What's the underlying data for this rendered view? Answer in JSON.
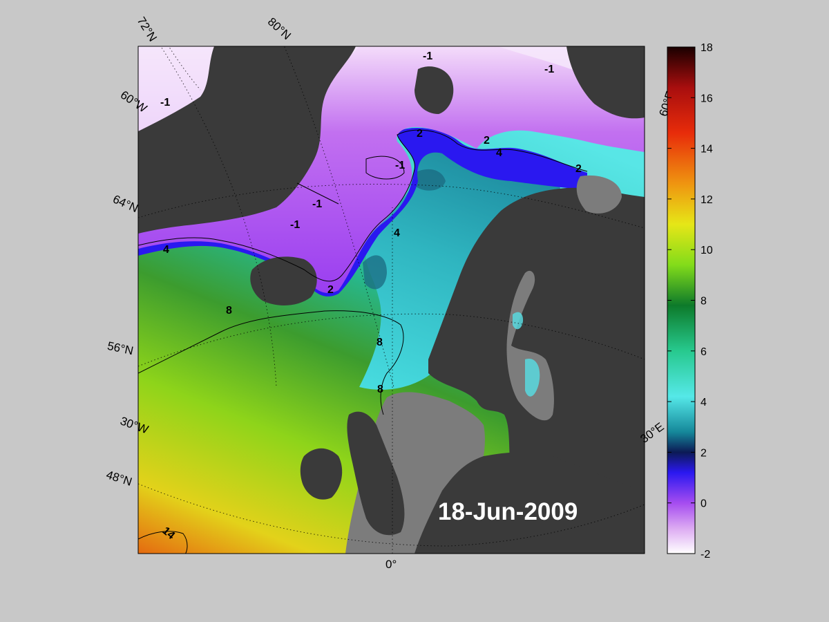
{
  "map": {
    "date_label": "18-Jun-2009",
    "lat_labels": [
      "72°N",
      "64°N",
      "56°N",
      "48°N"
    ],
    "lon_labels": [
      "80°N",
      "60°W",
      "30°W",
      "0°",
      "30°E",
      "60°E"
    ],
    "contour_labels": [
      "-1",
      "2",
      "4",
      "8",
      "14"
    ]
  },
  "colorbar": {
    "ticks": [
      "18",
      "16",
      "14",
      "12",
      "10",
      "8",
      "6",
      "4",
      "2",
      "0",
      "-2"
    ],
    "min": -2,
    "max": 18,
    "colors": [
      "#ffffff",
      "#dcaaf2",
      "#a54cf0",
      "#2a18f0",
      "#0c1a55",
      "#15889a",
      "#55e8e8",
      "#27c98e",
      "#0d7a2a",
      "#83dc1a",
      "#e6e617",
      "#ef9510",
      "#e82c0a",
      "#a80e0e",
      "#1a0000"
    ]
  }
}
